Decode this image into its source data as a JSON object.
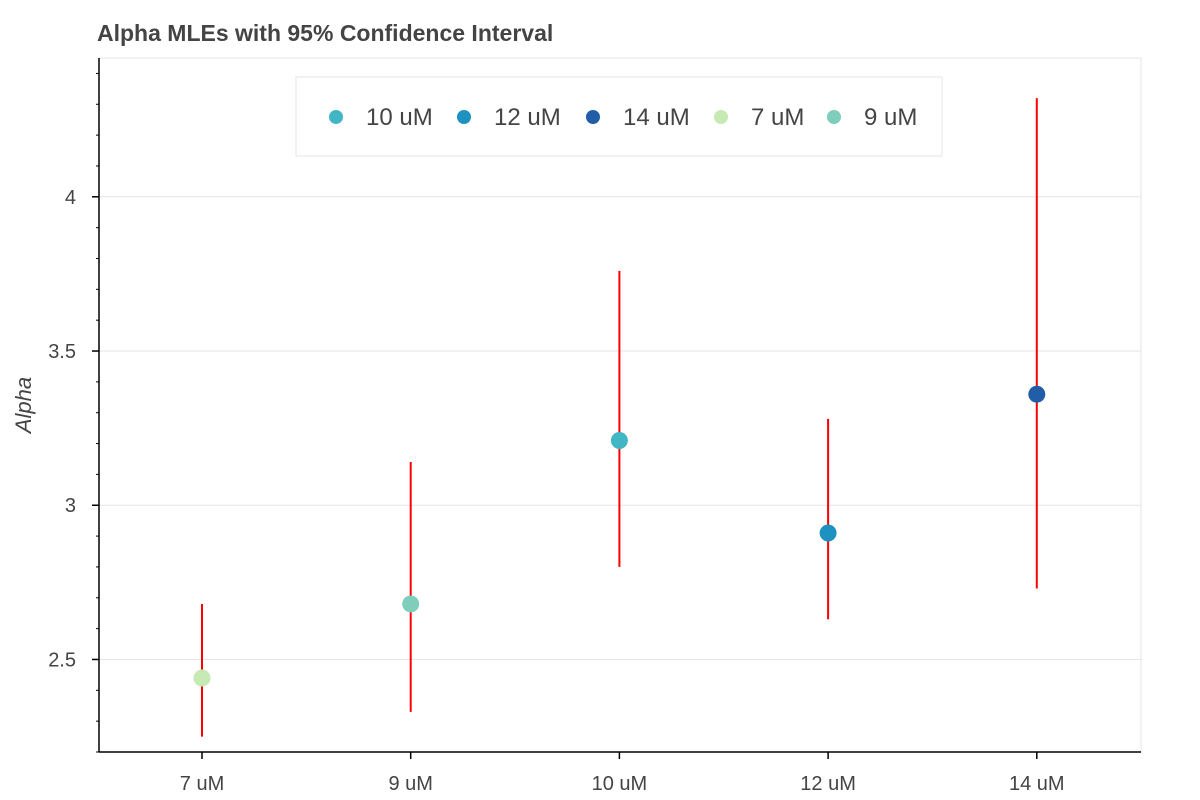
{
  "chart_data": {
    "type": "scatter",
    "title": "Alpha MLEs with 95% Confidence Interval",
    "xlabel": "",
    "ylabel": "Alpha",
    "categories": [
      "7 uM",
      "9 uM",
      "10 uM",
      "12 uM",
      "14 uM"
    ],
    "ylim": [
      2.2,
      4.45
    ],
    "yticks": [
      2.5,
      3,
      3.5,
      4
    ],
    "ytick_labels": [
      "2.5",
      "3",
      "3.5",
      "4"
    ],
    "grid": true,
    "legend_position": "top-center",
    "legend": [
      {
        "label": "10 uM",
        "color": "#41b6c4"
      },
      {
        "label": "12 uM",
        "color": "#1d91c0"
      },
      {
        "label": "14 uM",
        "color": "#225ea8"
      },
      {
        "label": "7 uM",
        "color": "#c7e9b4"
      },
      {
        "label": "9 uM",
        "color": "#7fcdbb"
      }
    ],
    "points": [
      {
        "category": "7 uM",
        "alpha": 2.44,
        "ci_low": 2.25,
        "ci_high": 2.68,
        "color": "#c7e9b4"
      },
      {
        "category": "9 uM",
        "alpha": 2.68,
        "ci_low": 2.33,
        "ci_high": 3.14,
        "color": "#7fcdbb"
      },
      {
        "category": "10 uM",
        "alpha": 3.21,
        "ci_low": 2.8,
        "ci_high": 3.76,
        "color": "#41b6c4"
      },
      {
        "category": "12 uM",
        "alpha": 2.91,
        "ci_low": 2.63,
        "ci_high": 3.28,
        "color": "#1d91c0"
      },
      {
        "category": "14 uM",
        "alpha": 3.36,
        "ci_low": 2.73,
        "ci_high": 4.32,
        "color": "#225ea8"
      }
    ],
    "error_bar_color": "#ff0000",
    "grid_color": "#e5e5e5",
    "axis_color": "#000000"
  }
}
